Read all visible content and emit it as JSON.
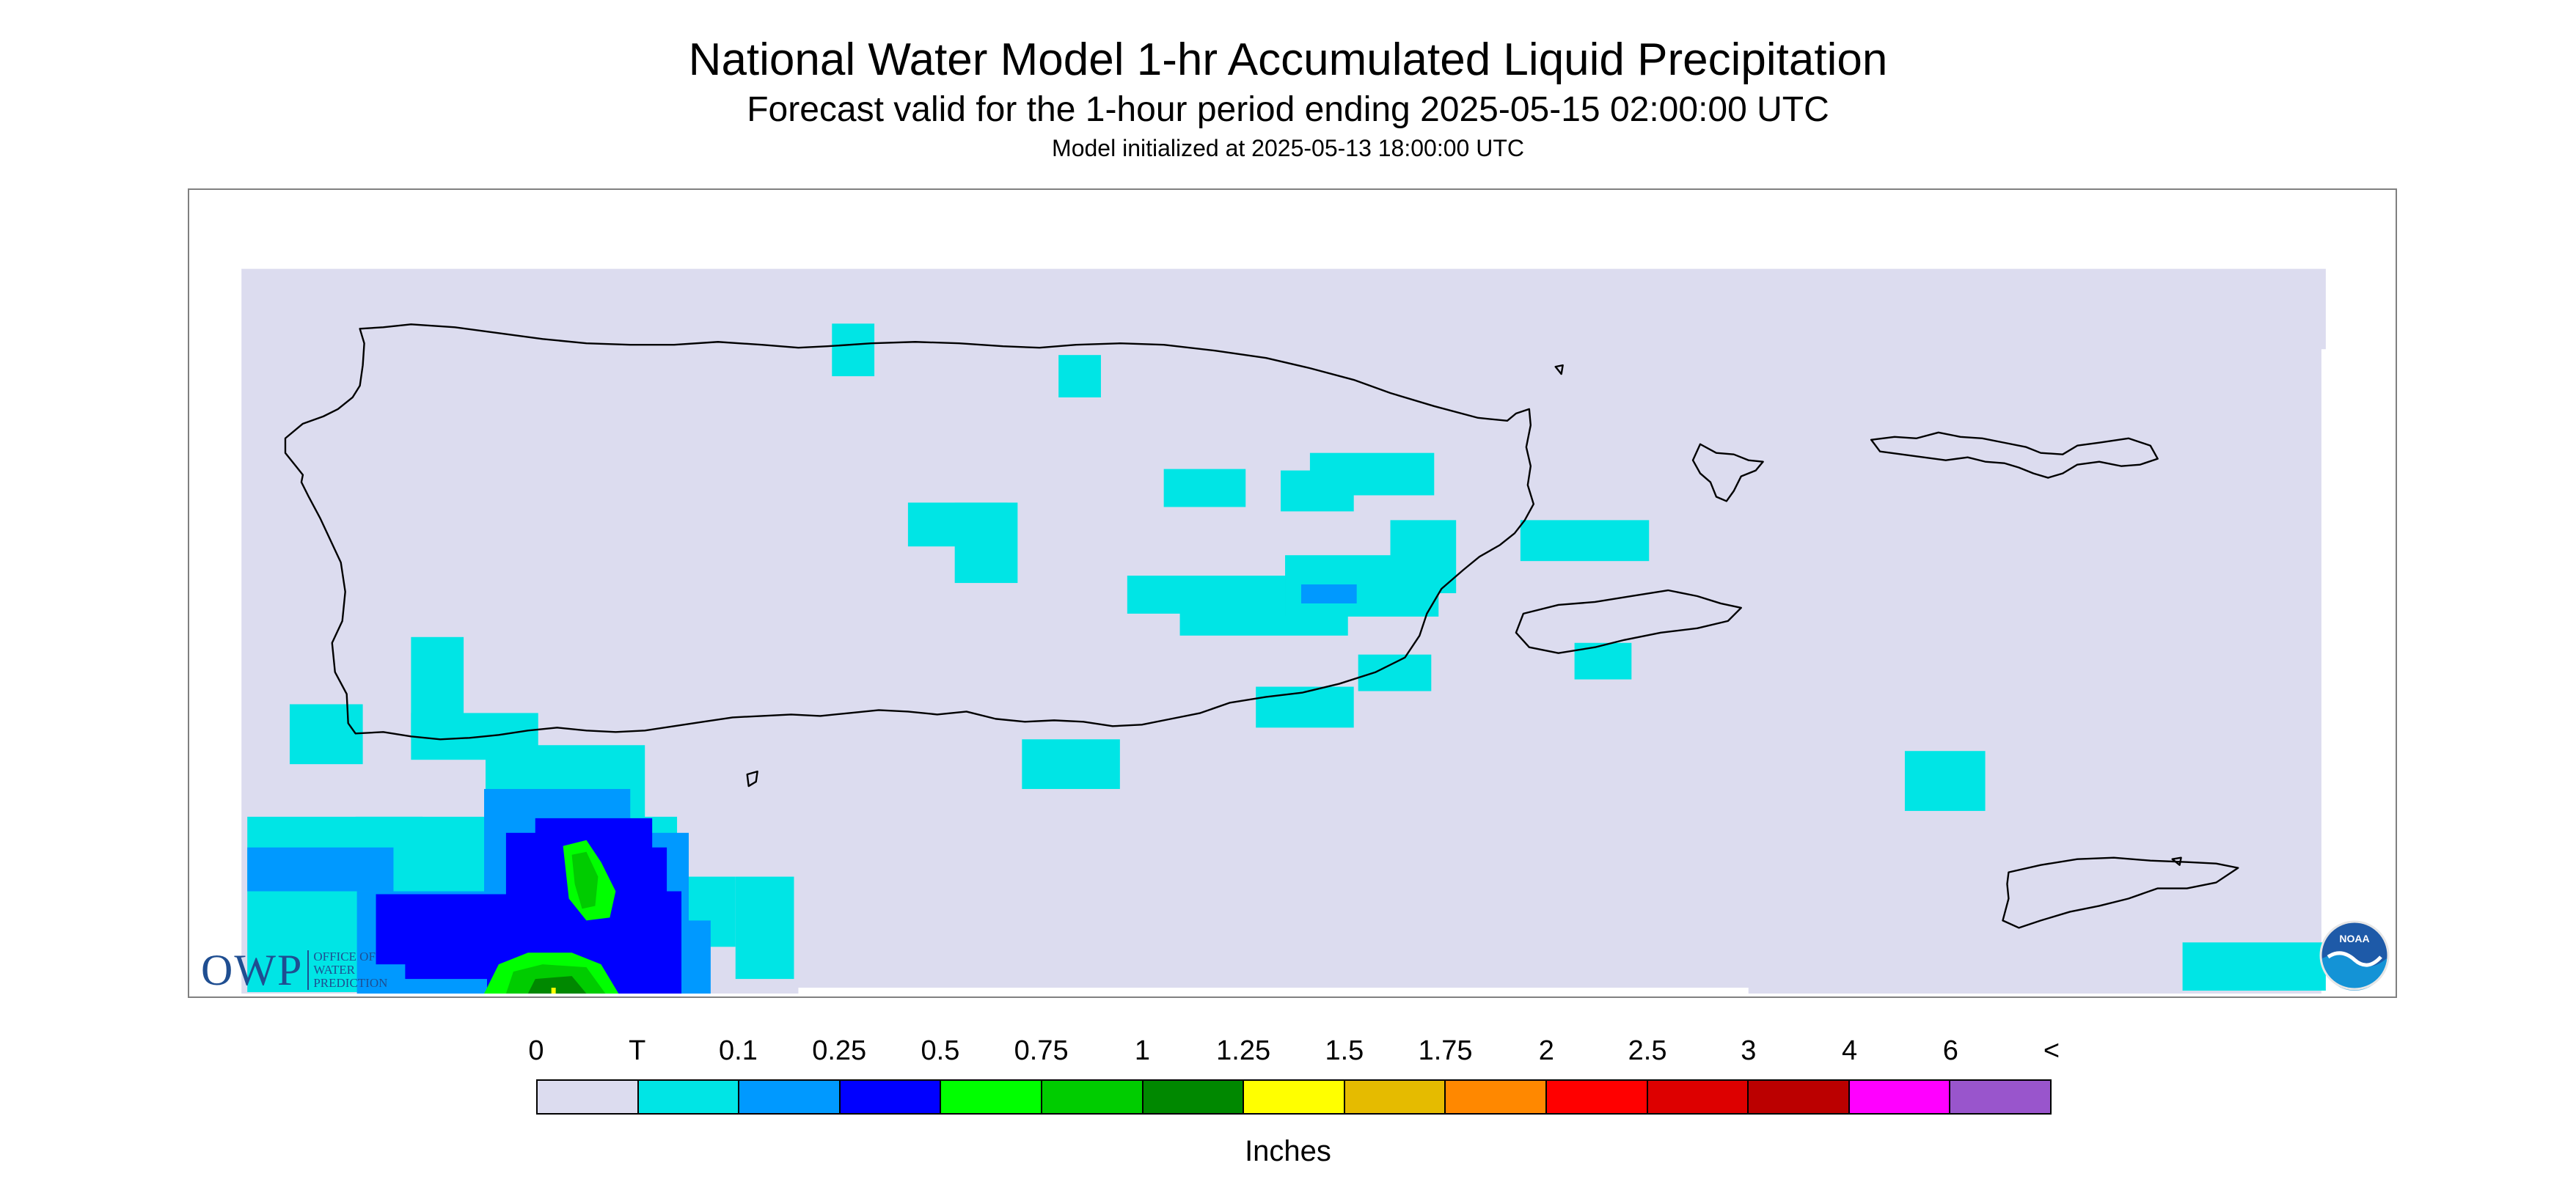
{
  "header": {
    "title": "National Water Model 1-hr Accumulated Liquid Precipitation",
    "subtitle": "Forecast valid for the 1-hour period ending 2025-05-15 02:00:00 UTC",
    "init_line": "Model initialized at 2025-05-13 18:00:00 UTC"
  },
  "logos": {
    "owp_letters": "OWP",
    "owp_sub": [
      "OFFICE OF",
      "WATER",
      "PREDICTION"
    ],
    "noaa_text": "NOAA"
  },
  "colors": {
    "background_field": "#dcdcef",
    "coastline": "#000000"
  },
  "legend": {
    "labels": [
      "0",
      "T",
      "0.1",
      "0.25",
      "0.5",
      "0.75",
      "1",
      "1.25",
      "1.5",
      "1.75",
      "2",
      "2.5",
      "3",
      "4",
      "6",
      "<"
    ],
    "colors": [
      "#dcdcef",
      "#00e5e5",
      "#0099ff",
      "#0000ff",
      "#00ff00",
      "#00cc00",
      "#008800",
      "#ffff00",
      "#e5bb00",
      "#ff8800",
      "#ff0000",
      "#dd0000",
      "#bb0000",
      "#ff00ff",
      "#9955cc"
    ],
    "units": "Inches"
  }
}
